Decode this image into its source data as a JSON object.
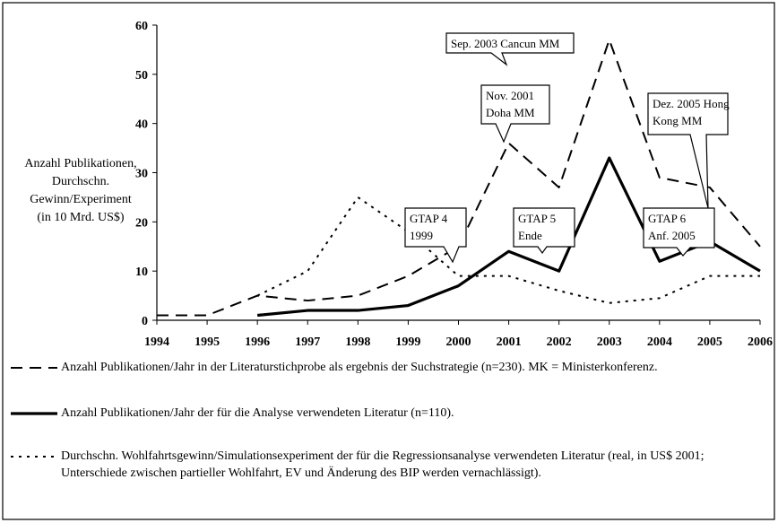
{
  "chart_data": {
    "type": "line",
    "y_label_lines": [
      "Anzahl Publikationen,",
      "Durchschn.",
      "Gewinn/Experiment",
      "(in 10 Mrd. US$)"
    ],
    "x": [
      1994,
      1995,
      1996,
      1997,
      1998,
      1999,
      2000,
      2001,
      2002,
      2003,
      2004,
      2005,
      2006
    ],
    "series": [
      {
        "name": "Anzahl Publikationen/Jahr in der Literaturstichprobe als ergebnis der Suchstrategie (n=230). MK = Ministerkonferenz.",
        "color": "#000000",
        "dash": "dashed",
        "values": [
          1,
          1,
          5,
          4,
          5,
          9,
          15,
          36,
          27,
          57,
          29,
          27,
          15
        ]
      },
      {
        "name": "Anzahl Publikationen/Jahr der für die Analyse verwendeten Literatur (n=110).",
        "color": "#000000",
        "dash": "solid",
        "values": [
          null,
          null,
          1,
          2,
          2,
          3,
          7,
          14,
          10,
          33,
          12,
          16,
          10
        ]
      },
      {
        "name": "Durchschn. Wohlfahrtsgewinn/Simulationsexperiment der für die Regressionsanalyse verwendeten Literatur (real, in US$ 2001; Unterschiede zwischen partieller Wohlfahrt, EV und Änderung des BIP werden vernachlässigt).",
        "color": "#000000",
        "dash": "dotted",
        "values": [
          null,
          null,
          5,
          10,
          25,
          18,
          9,
          9,
          6,
          3.5,
          4.5,
          9,
          9
        ]
      }
    ],
    "annotations": [
      {
        "lines": [
          "Sep. 2003 Cancun MM"
        ]
      },
      {
        "lines": [
          "Nov. 2001",
          "Doha MM"
        ]
      },
      {
        "lines": [
          "Dez. 2005 Hong",
          "Kong MM"
        ]
      },
      {
        "lines": [
          "GTAP 4",
          "1999"
        ]
      },
      {
        "lines": [
          "GTAP 5",
          "Ende"
        ]
      },
      {
        "lines": [
          "GTAP 6",
          "Anf. 2005"
        ]
      }
    ],
    "xlim": [
      1994,
      2006
    ],
    "xticks": [
      1994,
      1995,
      1996,
      1997,
      1998,
      1999,
      2000,
      2001,
      2002,
      2003,
      2004,
      2005,
      2006
    ],
    "ylim": [
      0,
      60
    ],
    "yticks": [
      0,
      10,
      20,
      30,
      40,
      50,
      60
    ]
  }
}
